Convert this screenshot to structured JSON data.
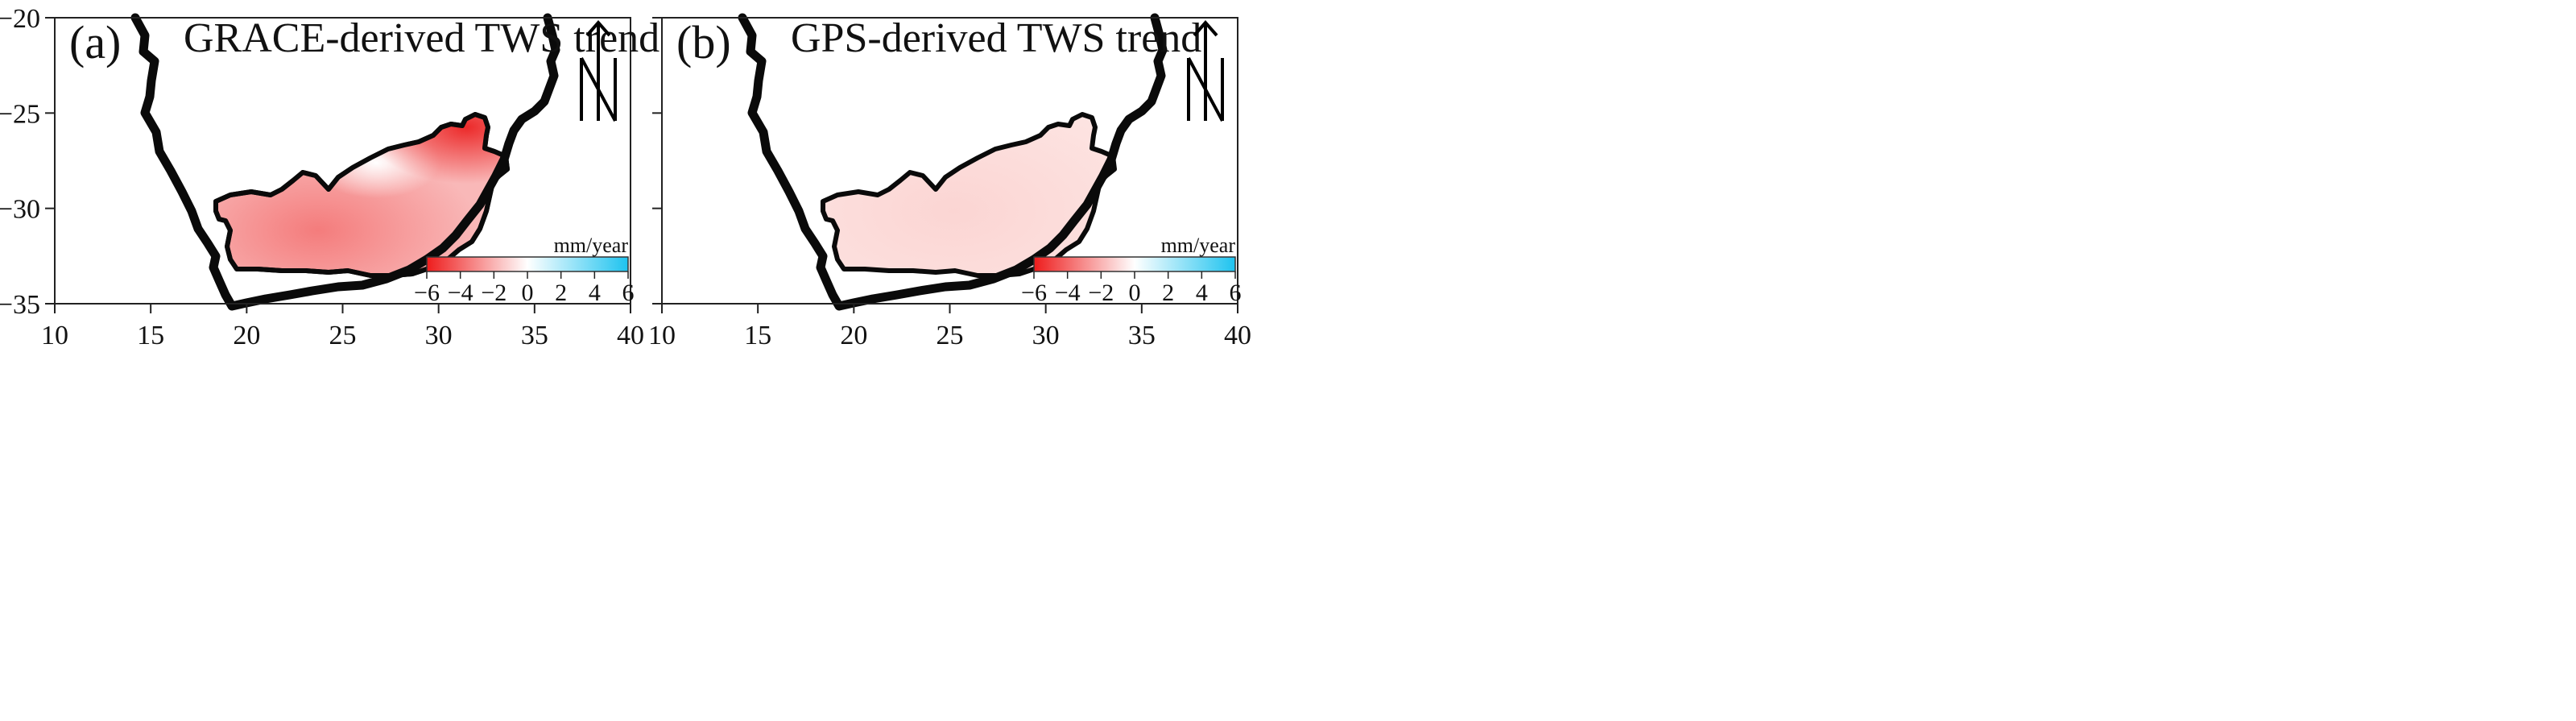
{
  "figure": {
    "lon_range": [
      10,
      40
    ],
    "lat_range": [
      -35,
      -20
    ],
    "x_ticks": [
      10,
      15,
      20,
      25,
      30,
      35,
      40
    ],
    "y_ticks": [
      -20,
      -25,
      -30,
      -35
    ],
    "x_tick_labels": [
      "10",
      "15",
      "20",
      "25",
      "30",
      "35",
      "40"
    ],
    "y_tick_labels": [
      "−20",
      "−25",
      "−30",
      "−35"
    ],
    "colorbar": {
      "unit": "mm/year",
      "ticks": [
        -6,
        -4,
        -2,
        0,
        2,
        4,
        6
      ],
      "tick_labels": [
        "−6",
        "−4",
        "−2",
        "0",
        "2",
        "4",
        "6"
      ],
      "colors": {
        "min": "#ee1c1c",
        "mid": "#ffffff",
        "max": "#1ec3ef"
      }
    },
    "north_arrow": {
      "icon": "north-arrow-icon"
    }
  },
  "panels": [
    {
      "letter": "(a)",
      "title": "GRACE-derived TWS trend",
      "basin_fill": "gradient-grace"
    },
    {
      "letter": "(b)",
      "title": "GPS-derived TWS trend",
      "basin_fill": "gradient-gps"
    }
  ]
}
